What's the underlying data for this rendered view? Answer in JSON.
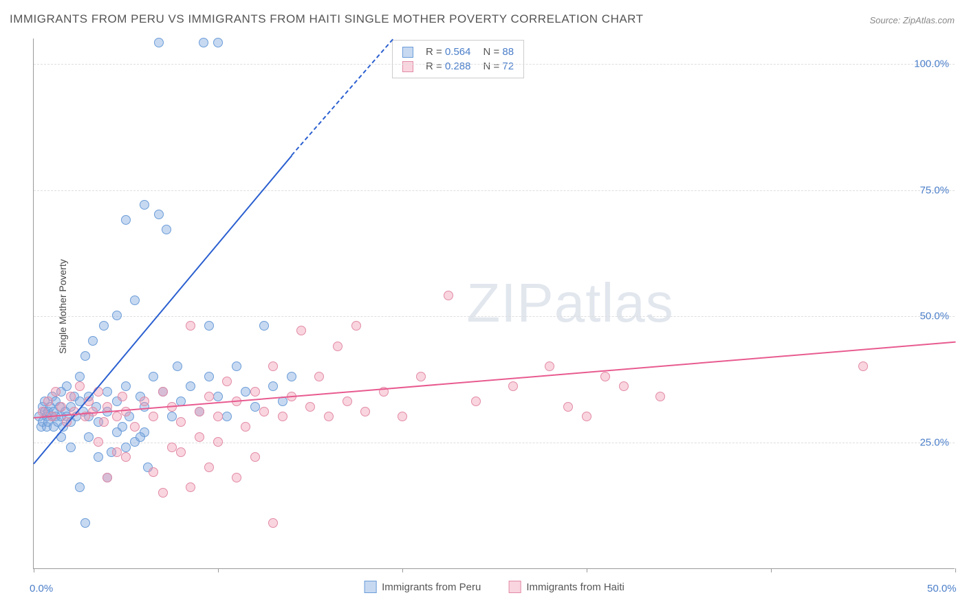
{
  "title": "IMMIGRANTS FROM PERU VS IMMIGRANTS FROM HAITI SINGLE MOTHER POVERTY CORRELATION CHART",
  "source_label": "Source: ZipAtlas.com",
  "ylabel": "Single Mother Poverty",
  "watermark": "ZIPatlas",
  "chart": {
    "type": "scatter",
    "xlim": [
      0,
      50
    ],
    "ylim": [
      0,
      105
    ],
    "xtick_labels": [
      "0.0%",
      "50.0%"
    ],
    "xtick_positions": [
      0,
      50
    ],
    "xtick_marks": [
      0,
      10,
      20,
      30,
      40,
      50
    ],
    "ytick_labels": [
      "25.0%",
      "50.0%",
      "75.0%",
      "100.0%"
    ],
    "ytick_positions": [
      25,
      50,
      75,
      100
    ],
    "background_color": "#ffffff",
    "grid_color": "#dddddd",
    "axis_color": "#999999",
    "tick_label_color": "#4a7ec9",
    "label_fontsize": 14,
    "tick_fontsize": 15
  },
  "series": [
    {
      "name": "Immigrants from Peru",
      "fill_color": "rgba(130,170,225,0.45)",
      "border_color": "#6a9cd8",
      "line_color": "#2a5fd0",
      "r_value": "0.564",
      "n_value": "88",
      "trend": {
        "x1": 0,
        "y1": 21,
        "x2": 14,
        "y2": 82,
        "dash_extend_to_x": 19.5,
        "dash_extend_to_y": 105
      },
      "points": [
        [
          0.3,
          30
        ],
        [
          0.4,
          28
        ],
        [
          0.5,
          32
        ],
        [
          0.5,
          29
        ],
        [
          0.6,
          31
        ],
        [
          0.6,
          33
        ],
        [
          0.7,
          28
        ],
        [
          0.7,
          30
        ],
        [
          0.8,
          31
        ],
        [
          0.8,
          29
        ],
        [
          0.9,
          32
        ],
        [
          1.0,
          30
        ],
        [
          1.0,
          34
        ],
        [
          1.1,
          28
        ],
        [
          1.1,
          31
        ],
        [
          1.2,
          30
        ],
        [
          1.2,
          33
        ],
        [
          1.3,
          29
        ],
        [
          1.4,
          32
        ],
        [
          1.5,
          30
        ],
        [
          1.5,
          35
        ],
        [
          1.6,
          28
        ],
        [
          1.7,
          31
        ],
        [
          1.8,
          30
        ],
        [
          1.8,
          36
        ],
        [
          2.0,
          32
        ],
        [
          2.0,
          29
        ],
        [
          2.2,
          34
        ],
        [
          2.3,
          30
        ],
        [
          2.5,
          33
        ],
        [
          2.5,
          38
        ],
        [
          2.7,
          31
        ],
        [
          2.8,
          42
        ],
        [
          3.0,
          34
        ],
        [
          3.0,
          30
        ],
        [
          3.2,
          45
        ],
        [
          3.4,
          32
        ],
        [
          3.5,
          29
        ],
        [
          3.8,
          48
        ],
        [
          4.0,
          35
        ],
        [
          4.0,
          31
        ],
        [
          4.2,
          23
        ],
        [
          4.5,
          50
        ],
        [
          4.5,
          33
        ],
        [
          4.8,
          28
        ],
        [
          5.0,
          36
        ],
        [
          5.0,
          69
        ],
        [
          5.2,
          30
        ],
        [
          5.5,
          53
        ],
        [
          5.8,
          34
        ],
        [
          6.0,
          72
        ],
        [
          6.0,
          32
        ],
        [
          6.2,
          20
        ],
        [
          6.5,
          38
        ],
        [
          6.8,
          70
        ],
        [
          6.8,
          104
        ],
        [
          7.0,
          35
        ],
        [
          7.2,
          67
        ],
        [
          7.5,
          30
        ],
        [
          7.8,
          40
        ],
        [
          8.0,
          33
        ],
        [
          8.5,
          36
        ],
        [
          9.0,
          31
        ],
        [
          9.2,
          104
        ],
        [
          9.5,
          38
        ],
        [
          9.5,
          48
        ],
        [
          10.0,
          104
        ],
        [
          10.0,
          34
        ],
        [
          10.5,
          30
        ],
        [
          11.0,
          40
        ],
        [
          11.5,
          35
        ],
        [
          12.0,
          32
        ],
        [
          12.5,
          48
        ],
        [
          13.0,
          36
        ],
        [
          13.5,
          33
        ],
        [
          14.0,
          38
        ],
        [
          2.8,
          9
        ],
        [
          2.5,
          16
        ],
        [
          3.5,
          22
        ],
        [
          4.0,
          18
        ],
        [
          5.5,
          25
        ],
        [
          6.0,
          27
        ],
        [
          1.5,
          26
        ],
        [
          2.0,
          24
        ],
        [
          3.0,
          26
        ],
        [
          4.5,
          27
        ],
        [
          5.0,
          24
        ],
        [
          5.8,
          26
        ]
      ]
    },
    {
      "name": "Immigrants from Haiti",
      "fill_color": "rgba(240,150,175,0.4)",
      "border_color": "#e28aa5",
      "line_color": "#e85a8f",
      "r_value": "0.288",
      "n_value": "72",
      "trend": {
        "x1": 0,
        "y1": 30,
        "x2": 50,
        "y2": 45
      },
      "points": [
        [
          0.5,
          31
        ],
        [
          0.8,
          33
        ],
        [
          1.0,
          30
        ],
        [
          1.2,
          35
        ],
        [
          1.5,
          32
        ],
        [
          1.8,
          29
        ],
        [
          2.0,
          34
        ],
        [
          2.2,
          31
        ],
        [
          2.5,
          36
        ],
        [
          2.8,
          30
        ],
        [
          3.0,
          33
        ],
        [
          3.2,
          31
        ],
        [
          3.5,
          35
        ],
        [
          3.8,
          29
        ],
        [
          4.0,
          32
        ],
        [
          4.5,
          30
        ],
        [
          4.8,
          34
        ],
        [
          5.0,
          31
        ],
        [
          5.5,
          28
        ],
        [
          6.0,
          33
        ],
        [
          6.5,
          30
        ],
        [
          7.0,
          35
        ],
        [
          7.5,
          32
        ],
        [
          8.0,
          29
        ],
        [
          8.5,
          48
        ],
        [
          9.0,
          31
        ],
        [
          9.5,
          34
        ],
        [
          10.0,
          30
        ],
        [
          10.5,
          37
        ],
        [
          11.0,
          33
        ],
        [
          11.5,
          28
        ],
        [
          12.0,
          35
        ],
        [
          12.5,
          31
        ],
        [
          13.0,
          40
        ],
        [
          13.5,
          30
        ],
        [
          14.0,
          34
        ],
        [
          14.5,
          47
        ],
        [
          15.0,
          32
        ],
        [
          15.5,
          38
        ],
        [
          16.0,
          30
        ],
        [
          16.5,
          44
        ],
        [
          17.0,
          33
        ],
        [
          17.5,
          48
        ],
        [
          18.0,
          31
        ],
        [
          19.0,
          35
        ],
        [
          20.0,
          30
        ],
        [
          21.0,
          38
        ],
        [
          22.5,
          54
        ],
        [
          24.0,
          33
        ],
        [
          26.0,
          36
        ],
        [
          28.0,
          40
        ],
        [
          29.0,
          32
        ],
        [
          30.0,
          30
        ],
        [
          31.0,
          38
        ],
        [
          32.0,
          36
        ],
        [
          34.0,
          34
        ],
        [
          45.0,
          40
        ],
        [
          4.0,
          18
        ],
        [
          5.0,
          22
        ],
        [
          6.5,
          19
        ],
        [
          7.5,
          24
        ],
        [
          8.5,
          16
        ],
        [
          9.5,
          20
        ],
        [
          10.0,
          25
        ],
        [
          11.0,
          18
        ],
        [
          12.0,
          22
        ],
        [
          13.0,
          9
        ],
        [
          7.0,
          15
        ],
        [
          8.0,
          23
        ],
        [
          9.0,
          26
        ],
        [
          3.5,
          25
        ],
        [
          4.5,
          23
        ]
      ]
    }
  ],
  "legend": {
    "series1_label": "Immigrants from Peru",
    "series2_label": "Immigrants from Haiti"
  },
  "stats_box": {
    "r_label": "R =",
    "n_label": "N ="
  }
}
